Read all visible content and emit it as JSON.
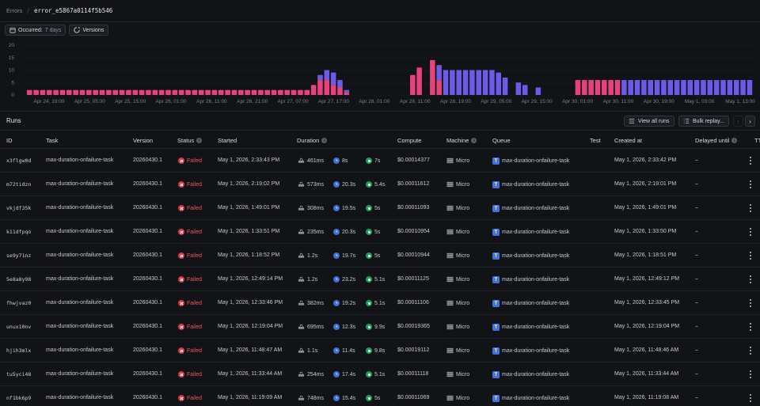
{
  "breadcrumb": {
    "root": "Errors",
    "current": "error_e5867a0114f5b546"
  },
  "filters": {
    "occurred_label": "Occurred:",
    "occurred_value": "7 days",
    "versions_label": "Versions"
  },
  "colors": {
    "failed": "#e8427c",
    "completed": "#6c5be6",
    "background": "#121317",
    "error_red": "#e0353f",
    "queue_blue": "#3f74e0",
    "success_green": "#1f9d55"
  },
  "chart_data": {
    "type": "bar",
    "stacked": true,
    "title": "",
    "ylim": [
      0,
      20
    ],
    "yticks": [
      0,
      5,
      10,
      15,
      20
    ],
    "grid": true,
    "xtick_labels": [
      "Apr 24, 19:00",
      "Apr 25, 05:00",
      "Apr 25, 15:00",
      "Apr 26, 01:00",
      "Apr 26, 11:00",
      "Apr 26, 21:00",
      "Apr 27, 07:00",
      "Apr 27, 17:00",
      "Apr 28, 01:00",
      "Apr 28, 11:00",
      "Apr 28, 19:00",
      "Apr 29, 05:00",
      "Apr 29, 15:00",
      "Apr 30, 01:00",
      "Apr 30, 11:00",
      "Apr 30, 19:00",
      "May 1, 03:00",
      "May 1, 13:00"
    ],
    "series": [
      {
        "color": "#e8427c",
        "values": [
          2,
          2,
          2,
          2,
          2,
          2,
          2,
          2,
          2,
          2,
          2,
          2,
          2,
          2,
          2,
          2,
          2,
          2,
          2,
          2,
          2,
          2,
          2,
          2,
          2,
          2,
          2,
          2,
          2,
          2,
          2,
          2,
          2,
          2,
          2,
          2,
          2,
          2,
          2,
          2,
          2,
          2,
          2,
          4,
          6,
          6,
          4,
          3,
          1,
          0,
          0,
          0,
          0,
          0,
          0,
          0,
          0,
          0,
          8,
          11,
          0,
          14,
          6,
          0,
          0,
          0,
          0,
          0,
          0,
          0,
          0,
          0,
          0,
          0,
          0,
          0,
          0,
          0,
          0,
          0,
          0,
          0,
          0,
          6,
          6,
          6,
          6,
          6,
          6,
          6,
          0,
          0,
          0,
          0,
          0,
          0,
          0,
          0,
          0,
          0,
          0,
          0,
          0,
          0,
          0,
          0,
          0,
          0,
          0,
          0
        ]
      },
      {
        "color": "#6c5be6",
        "values": [
          0,
          0,
          0,
          0,
          0,
          0,
          0,
          0,
          0,
          0,
          0,
          0,
          0,
          0,
          0,
          0,
          0,
          0,
          0,
          0,
          0,
          0,
          0,
          0,
          0,
          0,
          0,
          0,
          0,
          0,
          0,
          0,
          0,
          0,
          0,
          0,
          0,
          0,
          0,
          0,
          0,
          0,
          0,
          0,
          2,
          4,
          5,
          3,
          1,
          0,
          0,
          0,
          0,
          0,
          0,
          0,
          0,
          0,
          0,
          0,
          0,
          0,
          6,
          10,
          10,
          10,
          10,
          10,
          10,
          10,
          10,
          9,
          7,
          0,
          5,
          4,
          0,
          3,
          0,
          0,
          0,
          0,
          0,
          0,
          0,
          0,
          0,
          0,
          0,
          0,
          6,
          6,
          6,
          6,
          6,
          6,
          6,
          6,
          6,
          6,
          6,
          6,
          6,
          6,
          6,
          6,
          6,
          6,
          6,
          6
        ]
      }
    ]
  },
  "runs": {
    "title": "Runs",
    "view_all": "View all runs",
    "bulk_replay": "Bulk replay...",
    "columns": [
      "ID",
      "Task",
      "Version",
      "Status",
      "Started",
      "Duration",
      "Compute",
      "Machine",
      "Queue",
      "Test",
      "Created at",
      "Delayed until",
      "TT"
    ],
    "rows": [
      {
        "id": "x3flgw0d",
        "task": "max-duration-onfailure-task",
        "version": "20260430.1",
        "status": "Failed",
        "started": "May 1, 2026, 2:33:43 PM",
        "queued": "461ms",
        "exec": "8s",
        "total": "7s",
        "compute": "$0.00014377",
        "machine": "Micro",
        "queue": "max-duration-onfailure-task",
        "created": "May 1, 2026, 2:33:42 PM",
        "delayed": "–"
      },
      {
        "id": "m72tidzn",
        "task": "max-duration-onfailure-task",
        "version": "20260430.1",
        "status": "Failed",
        "started": "May 1, 2026, 2:19:02 PM",
        "queued": "573ms",
        "exec": "20.3s",
        "total": "5.4s",
        "compute": "$0.00011612",
        "machine": "Micro",
        "queue": "max-duration-onfailure-task",
        "created": "May 1, 2026, 2:19:01 PM",
        "delayed": "–"
      },
      {
        "id": "vkjdf35k",
        "task": "max-duration-onfailure-task",
        "version": "20260430.1",
        "status": "Failed",
        "started": "May 1, 2026, 1:49:01 PM",
        "queued": "308ms",
        "exec": "19.5s",
        "total": "5s",
        "compute": "$0.00011093",
        "machine": "Micro",
        "queue": "max-duration-onfailure-task",
        "created": "May 1, 2026, 1:49:01 PM",
        "delayed": "–"
      },
      {
        "id": "k11dfpqo",
        "task": "max-duration-onfailure-task",
        "version": "20260430.1",
        "status": "Failed",
        "started": "May 1, 2026, 1:33:51 PM",
        "queued": "235ms",
        "exec": "20.3s",
        "total": "5s",
        "compute": "$0.00010954",
        "machine": "Micro",
        "queue": "max-duration-onfailure-task",
        "created": "May 1, 2026, 1:33:50 PM",
        "delayed": "–"
      },
      {
        "id": "se9y71nz",
        "task": "max-duration-onfailure-task",
        "version": "20260430.1",
        "status": "Failed",
        "started": "May 1, 2026, 1:18:52 PM",
        "queued": "1.2s",
        "exec": "19.7s",
        "total": "5s",
        "compute": "$0.00010944",
        "machine": "Micro",
        "queue": "max-duration-onfailure-task",
        "created": "May 1, 2026, 1:18:51 PM",
        "delayed": "–"
      },
      {
        "id": "5e8a8y98",
        "task": "max-duration-onfailure-task",
        "version": "20260430.1",
        "status": "Failed",
        "started": "May 1, 2026, 12:49:14 PM",
        "queued": "1.2s",
        "exec": "23.2s",
        "total": "5.1s",
        "compute": "$0.00011125",
        "machine": "Micro",
        "queue": "max-duration-onfailure-task",
        "created": "May 1, 2026, 12:49:12 PM",
        "delayed": "–"
      },
      {
        "id": "fhwjvaz0",
        "task": "max-duration-onfailure-task",
        "version": "20260430.1",
        "status": "Failed",
        "started": "May 1, 2026, 12:33:46 PM",
        "queued": "382ms",
        "exec": "19.2s",
        "total": "5.1s",
        "compute": "$0.00011106",
        "machine": "Micro",
        "queue": "max-duration-onfailure-task",
        "created": "May 1, 2026, 12:33:45 PM",
        "delayed": "–"
      },
      {
        "id": "unux10nv",
        "task": "max-duration-onfailure-task",
        "version": "20260430.1",
        "status": "Failed",
        "started": "May 1, 2026, 12:19:04 PM",
        "queued": "695ms",
        "exec": "12.3s",
        "total": "9.9s",
        "compute": "$0.00019365",
        "machine": "Micro",
        "queue": "max-duration-onfailure-task",
        "created": "May 1, 2026, 12:19:04 PM",
        "delayed": "–"
      },
      {
        "id": "hjih3mlx",
        "task": "max-duration-onfailure-task",
        "version": "20260430.1",
        "status": "Failed",
        "started": "May 1, 2026, 11:48:47 AM",
        "queued": "1.1s",
        "exec": "11.4s",
        "total": "9.8s",
        "compute": "$0.00019112",
        "machine": "Micro",
        "queue": "max-duration-onfailure-task",
        "created": "May 1, 2026, 11:48:46 AM",
        "delayed": "–"
      },
      {
        "id": "tu5yci48",
        "task": "max-duration-onfailure-task",
        "version": "20260430.1",
        "status": "Failed",
        "started": "May 1, 2026, 11:33:44 AM",
        "queued": "254ms",
        "exec": "17.4s",
        "total": "5.1s",
        "compute": "$0.00011118",
        "machine": "Micro",
        "queue": "max-duration-onfailure-task",
        "created": "May 1, 2026, 11:33:44 AM",
        "delayed": "–"
      },
      {
        "id": "nf1bk6p9",
        "task": "max-duration-onfailure-task",
        "version": "20260430.1",
        "status": "Failed",
        "started": "May 1, 2026, 11:19:09 AM",
        "queued": "748ms",
        "exec": "15.4s",
        "total": "5s",
        "compute": "$0.00011069",
        "machine": "Micro",
        "queue": "max-duration-onfailure-task",
        "created": "May 1, 2026, 11:19:08 AM",
        "delayed": "–"
      }
    ]
  }
}
